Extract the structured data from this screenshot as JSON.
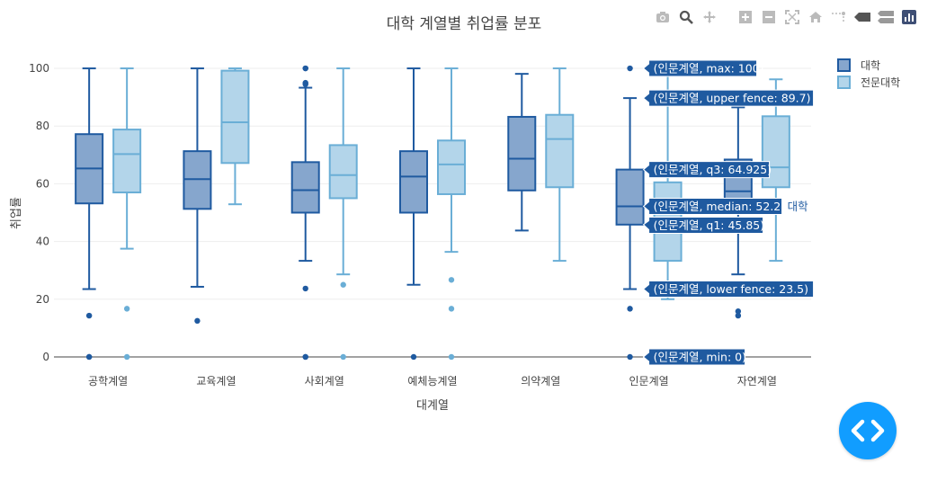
{
  "chart_data": {
    "type": "box",
    "title": "대학 계열별 취업률 분포",
    "xlabel": "대계열",
    "ylabel": "취업률",
    "ylim": [
      -5,
      105
    ],
    "yticks": [
      0,
      20,
      40,
      60,
      80,
      100
    ],
    "grid": true,
    "legend_position": "top-right",
    "categories": [
      "공학계열",
      "교육계열",
      "사회계열",
      "예체능계열",
      "의약계열",
      "인문계열",
      "자연계열"
    ],
    "series": [
      {
        "name": "대학",
        "color": "#1f5aa0",
        "fill": "#86a6cd",
        "boxes": [
          {
            "min": 23.5,
            "q1": 53.2,
            "median": 65.3,
            "q3": 77.2,
            "max": 100,
            "outliers": [
              14.3,
              0,
              0
            ]
          },
          {
            "min": 24.3,
            "q1": 51.3,
            "median": 61.6,
            "q3": 71.3,
            "max": 100,
            "outliers": [
              12.5
            ]
          },
          {
            "min": 33.3,
            "q1": 50.0,
            "median": 57.8,
            "q3": 67.5,
            "max": 93.3,
            "outliers": [
              100,
              100,
              95,
              94.5,
              23.7,
              0,
              0
            ]
          },
          {
            "min": 25.0,
            "q1": 50.0,
            "median": 62.5,
            "q3": 71.3,
            "max": 100,
            "outliers": [
              0
            ]
          },
          {
            "min": 43.8,
            "q1": 57.7,
            "median": 68.7,
            "q3": 83.2,
            "max": 98.1,
            "outliers": []
          },
          {
            "min": 23.5,
            "q1": 45.85,
            "median": 52.2,
            "q3": 64.925,
            "max": 89.7,
            "outliers": [
              100,
              16.7,
              0
            ]
          },
          {
            "min": 28.6,
            "q1": 53.0,
            "median": 57.4,
            "q3": 68.4,
            "max": 86.5,
            "outliers": [
              15.8,
              14.3
            ]
          }
        ]
      },
      {
        "name": "전문대학",
        "color": "#6aaed6",
        "fill": "#b3d5ea",
        "boxes": [
          {
            "min": 37.5,
            "q1": 57.0,
            "median": 70.3,
            "q3": 78.8,
            "max": 100,
            "outliers": [
              16.7,
              0
            ]
          },
          {
            "min": 52.9,
            "q1": 67.2,
            "median": 81.3,
            "q3": 99.2,
            "max": 100,
            "outliers": []
          },
          {
            "min": 28.6,
            "q1": 55.0,
            "median": 63.0,
            "q3": 73.4,
            "max": 100,
            "outliers": [
              25.0,
              0
            ]
          },
          {
            "min": 36.4,
            "q1": 56.4,
            "median": 66.7,
            "q3": 75.0,
            "max": 100,
            "outliers": [
              26.7,
              16.7,
              0
            ]
          },
          {
            "min": 33.3,
            "q1": 58.8,
            "median": 75.5,
            "q3": 83.9,
            "max": 100,
            "outliers": []
          },
          {
            "min": 20.0,
            "q1": 33.3,
            "median": 50.0,
            "q3": 60.5,
            "max": 100,
            "outliers": []
          },
          {
            "min": 33.3,
            "q1": 58.8,
            "median": 65.7,
            "q3": 83.4,
            "max": 96.2,
            "outliers": []
          }
        ]
      }
    ],
    "hover": {
      "category_index": 5,
      "series_index": 0,
      "trace_label": "대학",
      "labels": [
        {
          "text": "(인문계열, max: 100)",
          "value": 100
        },
        {
          "text": "(인문계열, upper fence: 89.7)",
          "value": 89.7
        },
        {
          "text": "(인문계열, q3: 64.925)",
          "value": 64.925
        },
        {
          "text": "(인문계열, median: 52.2)",
          "value": 52.2
        },
        {
          "text": "(인문계열, q1: 45.85)",
          "value": 45.85
        },
        {
          "text": "(인문계열, lower fence: 23.5)",
          "value": 23.5
        },
        {
          "text": "(인문계열, min: 0)",
          "value": 0
        }
      ]
    }
  },
  "toolbar": {
    "icons": [
      "camera-icon",
      "zoom-icon",
      "pan-icon",
      "zoom-in-icon",
      "zoom-out-icon",
      "autoscale-icon",
      "reset-axes-icon",
      "spike-lines-icon",
      "show-closest-icon",
      "compare-icon",
      "plotly-logo-icon"
    ]
  },
  "code_button": {
    "icon": "code-icon",
    "color": "#119dff"
  }
}
